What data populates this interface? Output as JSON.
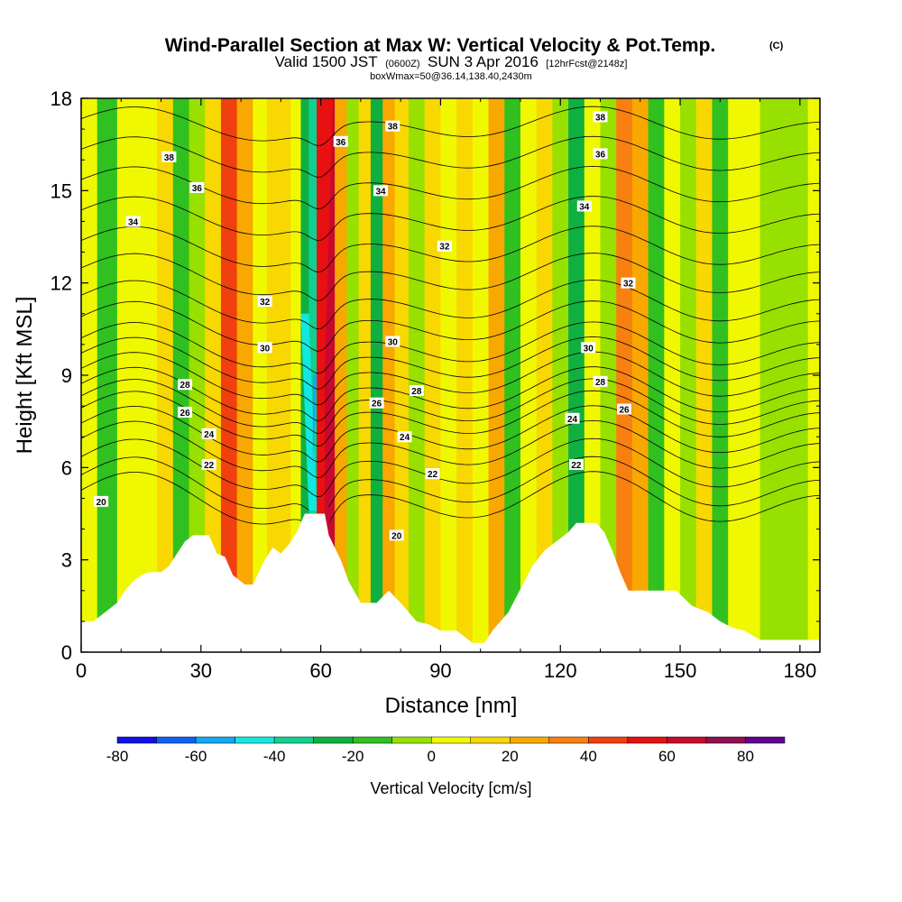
{
  "chart_data": {
    "type": "heatmap",
    "title": {
      "main": "Wind-Parallel Section at Max W: Vertical Velocity & Pot.Temp.",
      "copyright": "(C)",
      "valid": "Valid 1500 JST",
      "zulu": "(0600Z)",
      "date": "SUN 3 Apr 2016",
      "forecast": "[12hrFcst@2148z]",
      "box": "boxWmax=50@36.14,138.40,2430m"
    },
    "xlabel": "Distance [nm]",
    "ylabel": "Height [Kft MSL]",
    "xlim": [
      0,
      185
    ],
    "ylim": [
      0,
      18
    ],
    "x_ticks": [
      0,
      30,
      60,
      90,
      120,
      150,
      180
    ],
    "y_ticks": [
      0,
      3,
      6,
      9,
      12,
      15,
      18
    ],
    "colorbar": {
      "label": "Vertical Velocity [cm/s]",
      "min": -80,
      "max": 90,
      "step": 10,
      "tick_values": [
        -80,
        -60,
        -40,
        -20,
        0,
        20,
        40,
        60,
        80
      ],
      "tick_labels": [
        "-80",
        "-60",
        "-40",
        "-20",
        "0",
        "20",
        "40",
        "60",
        "80"
      ],
      "colors": [
        "#1010e8",
        "#1060f0",
        "#10a8f0",
        "#10e8e0",
        "#10d090",
        "#10b040",
        "#30c020",
        "#98e000",
        "#f0f800",
        "#f8d800",
        "#f8a800",
        "#f88010",
        "#f04010",
        "#e81010",
        "#c80830",
        "#901050",
        "#600090"
      ]
    },
    "velocity_columns": [
      {
        "x": 2,
        "v": 0
      },
      {
        "x": 6,
        "v": -20
      },
      {
        "x": 12,
        "v": 0
      },
      {
        "x": 17,
        "v": 5
      },
      {
        "x": 21,
        "v": 10
      },
      {
        "x": 25,
        "v": -20
      },
      {
        "x": 29,
        "v": -10
      },
      {
        "x": 33,
        "v": 15
      },
      {
        "x": 37,
        "v": 40
      },
      {
        "x": 41,
        "v": 25
      },
      {
        "x": 45,
        "v": 5
      },
      {
        "x": 48,
        "v": 10
      },
      {
        "x": 51,
        "v": 15
      },
      {
        "x": 54,
        "v": 5
      },
      {
        "x": 56,
        "v": -30
      },
      {
        "x": 58,
        "v": -40
      },
      {
        "x": 60,
        "v": 50
      },
      {
        "x": 62,
        "v": 60
      },
      {
        "x": 65,
        "v": 20
      },
      {
        "x": 68,
        "v": -5
      },
      {
        "x": 71,
        "v": 10
      },
      {
        "x": 74,
        "v": -30
      },
      {
        "x": 77,
        "v": 20
      },
      {
        "x": 80,
        "v": 15
      },
      {
        "x": 84,
        "v": -10
      },
      {
        "x": 88,
        "v": 10
      },
      {
        "x": 92,
        "v": 0
      },
      {
        "x": 96,
        "v": 15
      },
      {
        "x": 100,
        "v": 5
      },
      {
        "x": 104,
        "v": 20
      },
      {
        "x": 108,
        "v": -20
      },
      {
        "x": 112,
        "v": 5
      },
      {
        "x": 116,
        "v": 15
      },
      {
        "x": 120,
        "v": -10
      },
      {
        "x": 124,
        "v": -30
      },
      {
        "x": 128,
        "v": 5
      },
      {
        "x": 132,
        "v": -10
      },
      {
        "x": 136,
        "v": 35
      },
      {
        "x": 140,
        "v": 20
      },
      {
        "x": 144,
        "v": -20
      },
      {
        "x": 148,
        "v": 5
      },
      {
        "x": 152,
        "v": -5
      },
      {
        "x": 156,
        "v": 10
      },
      {
        "x": 160,
        "v": -20
      },
      {
        "x": 164,
        "v": 5
      },
      {
        "x": 168,
        "v": 0
      },
      {
        "x": 172,
        "v": -10
      },
      {
        "x": 176,
        "v": -5
      },
      {
        "x": 180,
        "v": -10
      },
      {
        "x": 184,
        "v": 0
      }
    ],
    "terrain": [
      {
        "x": 0,
        "h": 1.0
      },
      {
        "x": 3,
        "h": 1.0
      },
      {
        "x": 6,
        "h": 1.3
      },
      {
        "x": 9,
        "h": 1.6
      },
      {
        "x": 11,
        "h": 2.0
      },
      {
        "x": 13,
        "h": 2.3
      },
      {
        "x": 15,
        "h": 2.5
      },
      {
        "x": 17,
        "h": 2.6
      },
      {
        "x": 20,
        "h": 2.6
      },
      {
        "x": 22,
        "h": 2.8
      },
      {
        "x": 24,
        "h": 3.2
      },
      {
        "x": 26,
        "h": 3.6
      },
      {
        "x": 28,
        "h": 3.8
      },
      {
        "x": 32,
        "h": 3.8
      },
      {
        "x": 34,
        "h": 3.2
      },
      {
        "x": 36,
        "h": 3.1
      },
      {
        "x": 38,
        "h": 2.5
      },
      {
        "x": 41,
        "h": 2.2
      },
      {
        "x": 43,
        "h": 2.2
      },
      {
        "x": 46,
        "h": 3.0
      },
      {
        "x": 48,
        "h": 3.4
      },
      {
        "x": 50,
        "h": 3.2
      },
      {
        "x": 52,
        "h": 3.5
      },
      {
        "x": 54,
        "h": 3.9
      },
      {
        "x": 56,
        "h": 4.5
      },
      {
        "x": 61,
        "h": 4.5
      },
      {
        "x": 62,
        "h": 3.8
      },
      {
        "x": 65,
        "h": 3.0
      },
      {
        "x": 67,
        "h": 2.3
      },
      {
        "x": 70,
        "h": 1.6
      },
      {
        "x": 74,
        "h": 1.6
      },
      {
        "x": 77,
        "h": 2.0
      },
      {
        "x": 80,
        "h": 1.6
      },
      {
        "x": 82,
        "h": 1.3
      },
      {
        "x": 84,
        "h": 1.0
      },
      {
        "x": 87,
        "h": 0.9
      },
      {
        "x": 90,
        "h": 0.7
      },
      {
        "x": 94,
        "h": 0.7
      },
      {
        "x": 96,
        "h": 0.5
      },
      {
        "x": 98,
        "h": 0.3
      },
      {
        "x": 101,
        "h": 0.3
      },
      {
        "x": 103,
        "h": 0.7
      },
      {
        "x": 105,
        "h": 1.0
      },
      {
        "x": 107,
        "h": 1.3
      },
      {
        "x": 109,
        "h": 1.8
      },
      {
        "x": 111,
        "h": 2.3
      },
      {
        "x": 113,
        "h": 2.8
      },
      {
        "x": 116,
        "h": 3.3
      },
      {
        "x": 119,
        "h": 3.6
      },
      {
        "x": 122,
        "h": 3.9
      },
      {
        "x": 124,
        "h": 4.2
      },
      {
        "x": 129,
        "h": 4.2
      },
      {
        "x": 131,
        "h": 3.9
      },
      {
        "x": 133,
        "h": 3.3
      },
      {
        "x": 135,
        "h": 2.6
      },
      {
        "x": 137,
        "h": 2.0
      },
      {
        "x": 139,
        "h": 2.0
      },
      {
        "x": 149,
        "h": 2.0
      },
      {
        "x": 153,
        "h": 1.5
      },
      {
        "x": 157,
        "h": 1.3
      },
      {
        "x": 160,
        "h": 1.0
      },
      {
        "x": 163,
        "h": 0.8
      },
      {
        "x": 166,
        "h": 0.7
      },
      {
        "x": 170,
        "h": 0.4
      },
      {
        "x": 180,
        "h": 0.4
      },
      {
        "x": 185,
        "h": 0.4
      }
    ],
    "theta_contours": {
      "levels": [
        20,
        21,
        22,
        23,
        24,
        25,
        26,
        27,
        28,
        29,
        30,
        31,
        32,
        33,
        34,
        35,
        36,
        37,
        38
      ],
      "base_heights_kft": [
        4.9,
        5.4,
        6.0,
        6.6,
        7.1,
        7.6,
        8.0,
        8.4,
        8.9,
        9.4,
        9.9,
        10.6,
        11.3,
        12.2,
        13.1,
        14.1,
        15.1,
        16.1,
        17.1
      ]
    },
    "theta_labels": [
      {
        "text": "20",
        "x": 5,
        "y": 4.9
      },
      {
        "text": "20",
        "x": 79,
        "y": 3.8
      },
      {
        "text": "22",
        "x": 32,
        "y": 6.1
      },
      {
        "text": "22",
        "x": 88,
        "y": 5.8
      },
      {
        "text": "22",
        "x": 124,
        "y": 6.1
      },
      {
        "text": "24",
        "x": 32,
        "y": 7.1
      },
      {
        "text": "24",
        "x": 81,
        "y": 7.0
      },
      {
        "text": "24",
        "x": 123,
        "y": 7.6
      },
      {
        "text": "26",
        "x": 26,
        "y": 7.8
      },
      {
        "text": "26",
        "x": 74,
        "y": 8.1
      },
      {
        "text": "26",
        "x": 136,
        "y": 7.9
      },
      {
        "text": "28",
        "x": 26,
        "y": 8.7
      },
      {
        "text": "28",
        "x": 84,
        "y": 8.5
      },
      {
        "text": "28",
        "x": 130,
        "y": 8.8
      },
      {
        "text": "30",
        "x": 46,
        "y": 9.9
      },
      {
        "text": "30",
        "x": 78,
        "y": 10.1
      },
      {
        "text": "30",
        "x": 127,
        "y": 9.9
      },
      {
        "text": "32",
        "x": 46,
        "y": 11.4
      },
      {
        "text": "32",
        "x": 91,
        "y": 13.2
      },
      {
        "text": "32",
        "x": 137,
        "y": 12.0
      },
      {
        "text": "34",
        "x": 13,
        "y": 14.0
      },
      {
        "text": "34",
        "x": 75,
        "y": 15.0
      },
      {
        "text": "34",
        "x": 126,
        "y": 14.5
      },
      {
        "text": "36",
        "x": 29,
        "y": 15.1
      },
      {
        "text": "36",
        "x": 65,
        "y": 16.6
      },
      {
        "text": "36",
        "x": 130,
        "y": 16.2
      },
      {
        "text": "38",
        "x": 22,
        "y": 16.1
      },
      {
        "text": "38",
        "x": 78,
        "y": 17.1
      },
      {
        "text": "38",
        "x": 130,
        "y": 17.4
      }
    ]
  }
}
